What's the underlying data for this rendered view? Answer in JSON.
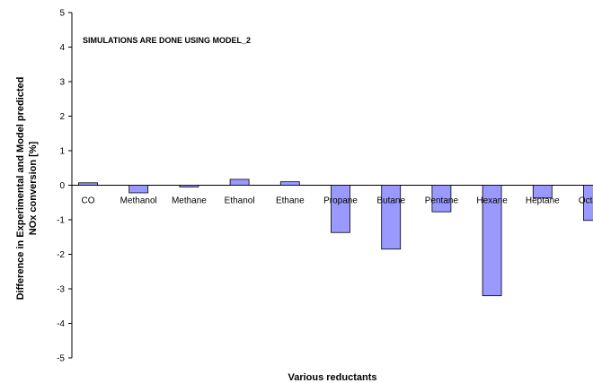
{
  "chart_data": {
    "type": "bar",
    "title": "",
    "annotation": "SIMULATIONS ARE DONE USING MODEL_2",
    "xlabel": "Various reductants",
    "ylabel_lines": [
      "Difference in Experimental and Model predicted",
      "NOx conversion [%]"
    ],
    "categories": [
      "CO",
      "Methanol",
      "Methane",
      "Ethanol",
      "Ethane",
      "Propane",
      "Butane",
      "Pentane",
      "Hexane",
      "Heptane",
      "Octane"
    ],
    "values": [
      0.07,
      -0.22,
      -0.05,
      0.17,
      0.1,
      -1.37,
      -1.85,
      -0.77,
      -3.2,
      -0.37,
      -1.02
    ],
    "yticks": [
      5,
      4,
      3,
      2,
      1,
      0,
      -1,
      -2,
      -3,
      -4,
      -5
    ],
    "ylim": [
      -5,
      5
    ],
    "grid": false,
    "legend": "none",
    "colors": {
      "bar_fill": "#9999FF",
      "bar_stroke": "#000000",
      "axis": "#000000"
    }
  }
}
